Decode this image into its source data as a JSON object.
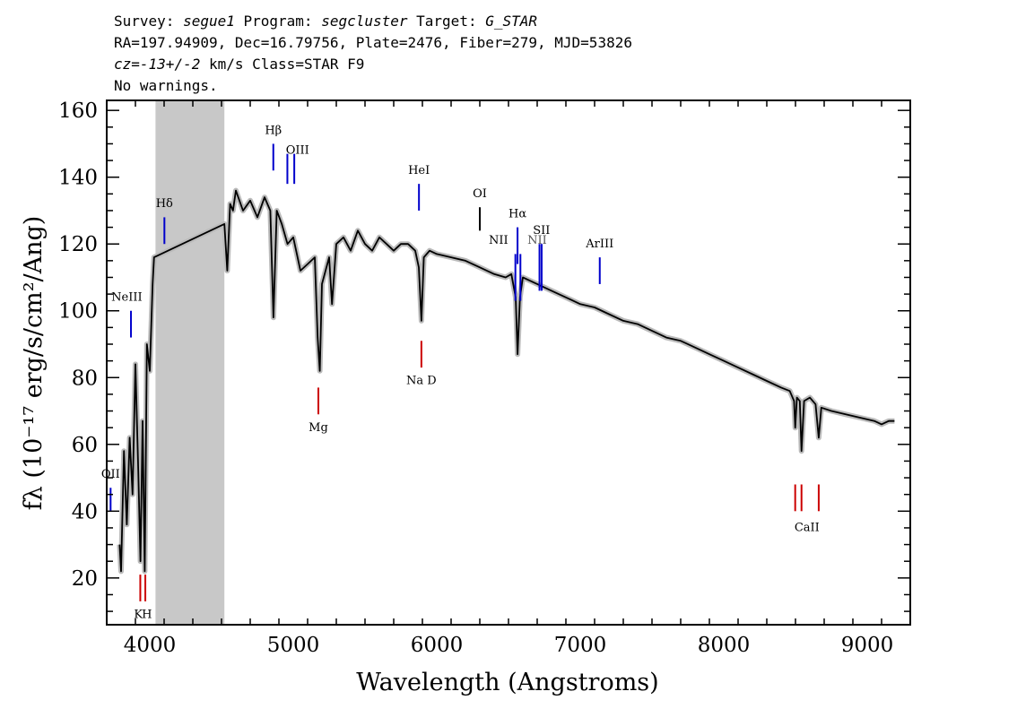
{
  "header": {
    "line1": {
      "survey_label": "Survey: ",
      "survey": "segue1",
      "program_label": " Program: ",
      "program": "segcluster",
      "target_label": " Target: ",
      "target": "G_STAR"
    },
    "line2": "RA=197.94909, Dec=16.79756, Plate=2476, Fiber=279, MJD=53826",
    "line3": {
      "cz_label": "cz=",
      "cz": "-13+/-2",
      "cz_unit": " km/s",
      "class": " Class=STAR F9"
    },
    "line4": "No warnings."
  },
  "chart_data": {
    "type": "line",
    "xlabel": "Wavelength (Angstroms)",
    "ylabel": "fλ (10⁻¹⁷ erg/s/cm²/Ang)",
    "xlim": [
      3700,
      9300
    ],
    "ylim": [
      6,
      163
    ],
    "x_ticks": [
      4000,
      5000,
      6000,
      7000,
      8000,
      9000
    ],
    "y_ticks": [
      20,
      40,
      60,
      80,
      100,
      120,
      140,
      160
    ],
    "masked_region": [
      4040,
      4520
    ],
    "series": [
      {
        "role": "flux",
        "color": "#000000",
        "points": [
          [
            3790,
            30
          ],
          [
            3800,
            22
          ],
          [
            3820,
            58
          ],
          [
            3840,
            36
          ],
          [
            3860,
            62
          ],
          [
            3880,
            45
          ],
          [
            3900,
            84
          ],
          [
            3920,
            52
          ],
          [
            3935,
            25
          ],
          [
            3950,
            67
          ],
          [
            3965,
            22
          ],
          [
            3980,
            90
          ],
          [
            4000,
            82
          ],
          [
            4020,
            108
          ],
          [
            4030,
            116
          ],
          [
            4520,
            126
          ],
          [
            4540,
            112
          ],
          [
            4560,
            132
          ],
          [
            4580,
            130
          ],
          [
            4600,
            136
          ],
          [
            4650,
            130
          ],
          [
            4700,
            133
          ],
          [
            4750,
            128
          ],
          [
            4800,
            134
          ],
          [
            4840,
            130
          ],
          [
            4862,
            98
          ],
          [
            4885,
            130
          ],
          [
            4920,
            126
          ],
          [
            4960,
            120
          ],
          [
            5000,
            122
          ],
          [
            5050,
            112
          ],
          [
            5100,
            114
          ],
          [
            5150,
            116
          ],
          [
            5170,
            92
          ],
          [
            5185,
            82
          ],
          [
            5200,
            108
          ],
          [
            5250,
            116
          ],
          [
            5270,
            102
          ],
          [
            5300,
            120
          ],
          [
            5350,
            122
          ],
          [
            5400,
            118
          ],
          [
            5450,
            124
          ],
          [
            5500,
            120
          ],
          [
            5550,
            118
          ],
          [
            5600,
            122
          ],
          [
            5650,
            120
          ],
          [
            5700,
            118
          ],
          [
            5750,
            120
          ],
          [
            5800,
            120
          ],
          [
            5850,
            118
          ],
          [
            5875,
            113
          ],
          [
            5893,
            97
          ],
          [
            5910,
            116
          ],
          [
            5950,
            118
          ],
          [
            6000,
            117
          ],
          [
            6100,
            116
          ],
          [
            6200,
            115
          ],
          [
            6300,
            113
          ],
          [
            6400,
            111
          ],
          [
            6480,
            110
          ],
          [
            6520,
            111
          ],
          [
            6550,
            104
          ],
          [
            6563,
            87
          ],
          [
            6580,
            104
          ],
          [
            6600,
            110
          ],
          [
            6700,
            108
          ],
          [
            6800,
            106
          ],
          [
            6900,
            104
          ],
          [
            7000,
            102
          ],
          [
            7100,
            101
          ],
          [
            7200,
            99
          ],
          [
            7300,
            97
          ],
          [
            7400,
            96
          ],
          [
            7500,
            94
          ],
          [
            7600,
            92
          ],
          [
            7700,
            91
          ],
          [
            7800,
            89
          ],
          [
            7900,
            87
          ],
          [
            8000,
            85
          ],
          [
            8100,
            83
          ],
          [
            8200,
            81
          ],
          [
            8300,
            79
          ],
          [
            8400,
            77
          ],
          [
            8460,
            76
          ],
          [
            8490,
            73
          ],
          [
            8498,
            65
          ],
          [
            8510,
            74
          ],
          [
            8530,
            73
          ],
          [
            8542,
            58
          ],
          [
            8560,
            73
          ],
          [
            8600,
            74
          ],
          [
            8640,
            72
          ],
          [
            8662,
            62
          ],
          [
            8680,
            71
          ],
          [
            8750,
            70
          ],
          [
            8850,
            69
          ],
          [
            8950,
            68
          ],
          [
            9050,
            67
          ],
          [
            9100,
            66
          ],
          [
            9150,
            67
          ],
          [
            9190,
            67
          ]
        ]
      }
    ],
    "line_markers": [
      {
        "label": "Hβ",
        "color": "#0000cc",
        "positions": [
          4861
        ],
        "y_from": 142,
        "y_to": 150,
        "text_x": 4861,
        "text_y": 153
      },
      {
        "label": "OIII",
        "color": "#0000cc",
        "positions": [
          4959,
          5007
        ],
        "y_from": 138,
        "y_to": 147,
        "text_x": 5030,
        "text_y": 147
      },
      {
        "label": "HeI",
        "color": "#0000cc",
        "positions": [
          5876
        ],
        "y_from": 130,
        "y_to": 138,
        "text_x": 5876,
        "text_y": 141
      },
      {
        "label": "OI",
        "color": "#000000",
        "positions": [
          6300
        ],
        "y_from": 124,
        "y_to": 131,
        "text_x": 6300,
        "text_y": 134
      },
      {
        "label": "Hα",
        "color": "#0000cc",
        "positions": [
          6563
        ],
        "y_from": 114,
        "y_to": 125,
        "text_x": 6563,
        "text_y": 128
      },
      {
        "label": "NII",
        "color": "#0000cc",
        "positions": [
          6548,
          6583
        ],
        "y_from": 103,
        "y_to": 117,
        "text_x": 6430,
        "text_y": 120
      },
      {
        "label": "SII",
        "color": "#0000cc",
        "positions": [
          6716,
          6731
        ],
        "y_from": 106,
        "y_to": 120,
        "text_x": 6730,
        "text_y": 123
      },
      {
        "label": "NII",
        "color": "#555555",
        "positions": [],
        "y_from": 0,
        "y_to": 0,
        "text_x": 6700,
        "text_y": 120
      },
      {
        "label": "ArIII",
        "color": "#0000cc",
        "positions": [
          7136
        ],
        "y_from": 108,
        "y_to": 116,
        "text_x": 7136,
        "text_y": 119
      },
      {
        "label": "Hδ",
        "color": "#0000cc",
        "positions": [
          4102
        ],
        "y_from": 120,
        "y_to": 128,
        "text_x": 4102,
        "text_y": 131
      },
      {
        "label": "NeIII",
        "color": "#0000cc",
        "positions": [
          3869
        ],
        "y_from": 92,
        "y_to": 100,
        "text_x": 3840,
        "text_y": 103
      },
      {
        "label": "OII",
        "color": "#0000cc",
        "positions": [
          3727
        ],
        "y_from": 40,
        "y_to": 47,
        "text_x": 3727,
        "text_y": 50
      },
      {
        "label": "Na D",
        "color": "#cc0000",
        "positions": [
          5893
        ],
        "y_from": 83,
        "y_to": 91,
        "text_x": 5893,
        "text_y": 78
      },
      {
        "label": "Mg",
        "color": "#cc0000",
        "positions": [
          5175
        ],
        "y_from": 69,
        "y_to": 77,
        "text_x": 5175,
        "text_y": 64
      },
      {
        "label": "K",
        "color": "#cc0000",
        "positions": [
          3934
        ],
        "y_from": 13,
        "y_to": 21,
        "text_x": 3920,
        "text_y": 8
      },
      {
        "label": "H",
        "color": "#cc0000",
        "positions": [
          3969
        ],
        "y_from": 13,
        "y_to": 21,
        "text_x": 3980,
        "text_y": 8
      },
      {
        "label": "CaII",
        "color": "#cc0000",
        "positions": [
          8498,
          8542,
          8662
        ],
        "y_from": 40,
        "y_to": 48,
        "text_x": 8580,
        "text_y": 34
      }
    ]
  }
}
